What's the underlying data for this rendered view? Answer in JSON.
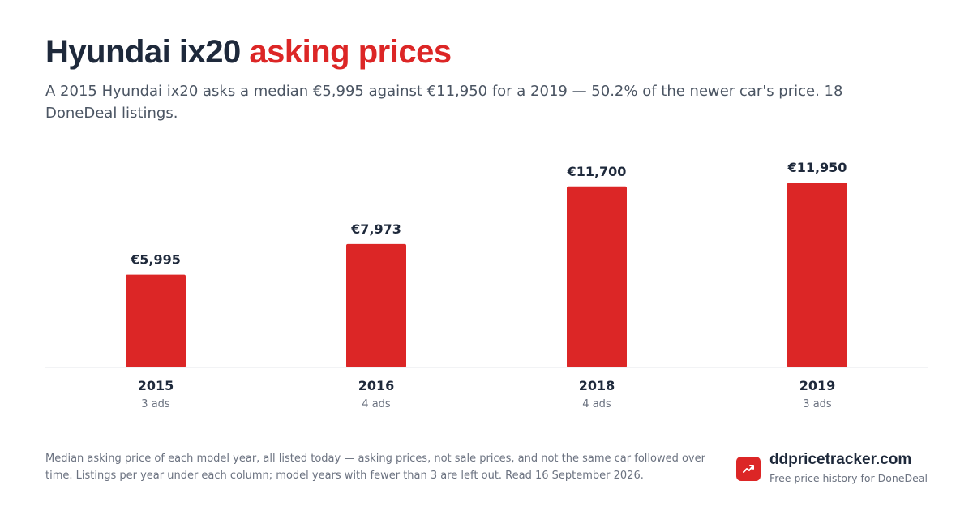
{
  "header": {
    "title_main": "Hyundai ix20",
    "title_accent": "asking prices",
    "subtitle": "A 2015 Hyundai ix20 asks a median €5,995 against €11,950 for a 2019 — 50.2% of the newer car's price. 18 DoneDeal listings."
  },
  "chart_data": {
    "type": "bar",
    "title": "Hyundai ix20 asking prices",
    "categories": [
      "2015",
      "2016",
      "2018",
      "2019"
    ],
    "values": [
      5995,
      7973,
      11700,
      11950
    ],
    "value_labels": [
      "€5,995",
      "€7,973",
      "€11,700",
      "€11,950"
    ],
    "listing_counts": [
      "3 ads",
      "4 ads",
      "4 ads",
      "3 ads"
    ],
    "xlabel": "",
    "ylabel": "",
    "ylim": [
      0,
      11950
    ],
    "grid": false,
    "bar_color": "#dc2626"
  },
  "footer": {
    "note": "Median asking price of each model year, all listed today — asking prices, not sale prices, and not the same car followed over time. Listings per year under each column; model years with fewer than 3 are left out. Read 16 September 2026.",
    "brand_name": "ddpricetracker.com",
    "brand_tagline": "Free price history for DoneDeal",
    "brand_icon": "trending-up-icon"
  },
  "colors": {
    "accent": "#dc2626",
    "text": "#1e293b",
    "muted": "#6b7280"
  }
}
